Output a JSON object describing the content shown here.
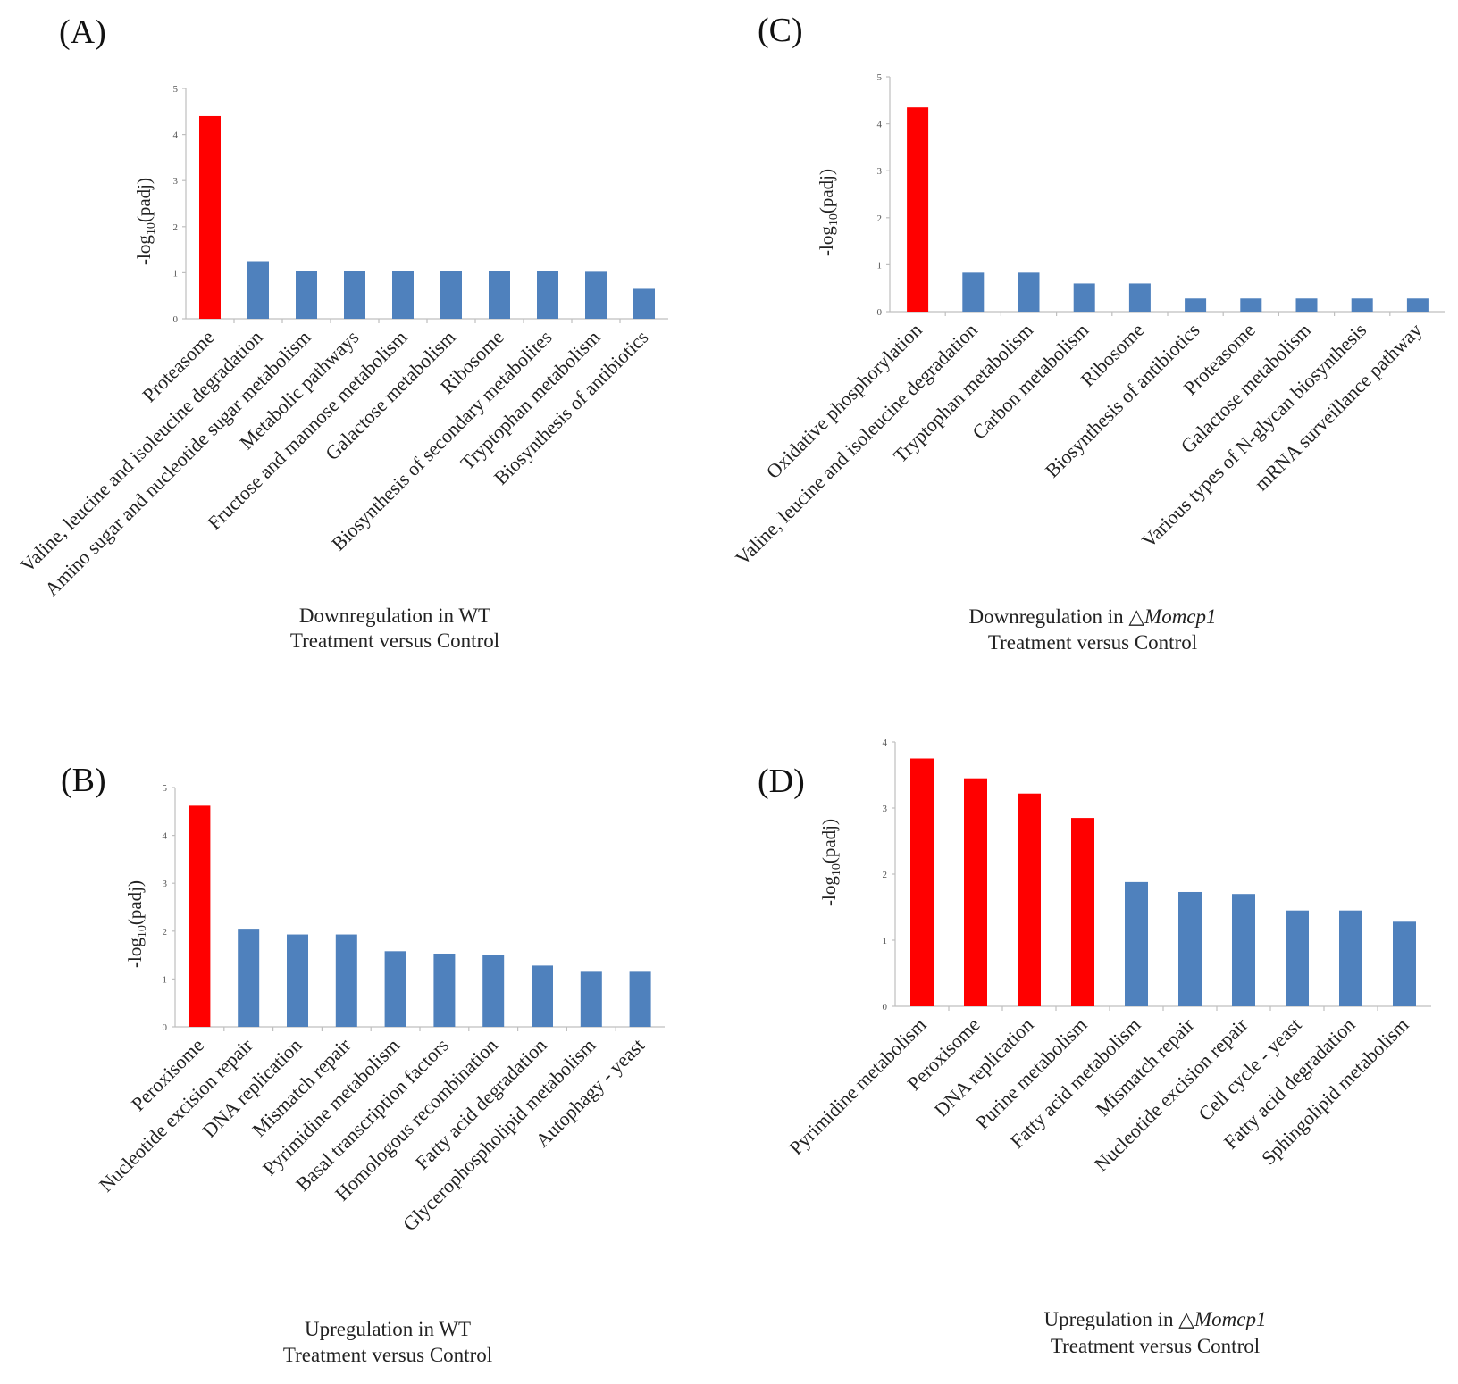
{
  "chart_data": [
    {
      "type": "bar",
      "panel": "(A)",
      "categories": [
        "Proteasome",
        "Valine, leucine and isoleucine degradation",
        "Amino sugar and nucleotide sugar metabolism",
        "Metabolic pathways",
        "Fructose and mannose metabolism",
        "Galactose metabolism",
        "Ribosome",
        "Biosynthesis of secondary metabolites",
        "Tryptophan metabolism",
        "Biosynthesis of antibiotics"
      ],
      "values": [
        4.4,
        1.25,
        1.03,
        1.03,
        1.03,
        1.03,
        1.03,
        1.03,
        1.02,
        0.65
      ],
      "highlight": [
        true,
        false,
        false,
        false,
        false,
        false,
        false,
        false,
        false,
        false
      ],
      "ylim": [
        0,
        5
      ],
      "yticks": [
        "0",
        "1",
        "2",
        "3",
        "4",
        "5"
      ],
      "ylabel": {
        "pre": "-log",
        "sub": "10",
        "post": "(padj)"
      },
      "title_lines": [
        {
          "text": "Downregulation in WT",
          "italic": ""
        },
        {
          "text": "Treatment versus Control",
          "italic": ""
        }
      ]
    },
    {
      "type": "bar",
      "panel": "(B)",
      "categories": [
        "Peroxisome",
        "Nucleotide excision repair",
        "DNA replication",
        "Mismatch repair",
        "Pyrimidine metabolism",
        "Basal transcription factors",
        "Homologous recombination",
        "Fatty acid degradation",
        "Glycerophospholipid metabolism",
        "Autophagy - yeast"
      ],
      "values": [
        4.62,
        2.05,
        1.93,
        1.93,
        1.58,
        1.53,
        1.5,
        1.28,
        1.15,
        1.15
      ],
      "highlight": [
        true,
        false,
        false,
        false,
        false,
        false,
        false,
        false,
        false,
        false
      ],
      "ylim": [
        0,
        5
      ],
      "yticks": [
        "0",
        "1",
        "2",
        "3",
        "4",
        "5"
      ],
      "ylabel": {
        "pre": "-log",
        "sub": "10",
        "post": "(padj)"
      },
      "title_lines": [
        {
          "text": "Upregulation in WT",
          "italic": ""
        },
        {
          "text": "Treatment versus Control",
          "italic": ""
        }
      ]
    },
    {
      "type": "bar",
      "panel": "(C)",
      "categories": [
        "Oxidative phosphorylation",
        "Valine, leucine and isoleucine degradation",
        "Tryptophan metabolism",
        "Carbon metabolism",
        "Ribosome",
        "Biosynthesis of antibiotics",
        "Proteasome",
        "Galactose metabolism",
        "Various types of N-glycan biosynthesis",
        "mRNA surveillance pathway"
      ],
      "values": [
        4.35,
        0.83,
        0.83,
        0.6,
        0.6,
        0.28,
        0.28,
        0.28,
        0.28,
        0.28
      ],
      "highlight": [
        true,
        false,
        false,
        false,
        false,
        false,
        false,
        false,
        false,
        false
      ],
      "ylim": [
        0,
        5
      ],
      "yticks": [
        "0",
        "1",
        "2",
        "3",
        "4",
        "5"
      ],
      "ylabel": {
        "pre": "-log",
        "sub": "10",
        "post": "(padj)"
      },
      "title_lines": [
        {
          "text": "Downregulation in △",
          "italic": "Momcp1"
        },
        {
          "text": "Treatment versus Control",
          "italic": ""
        }
      ]
    },
    {
      "type": "bar",
      "panel": "(D)",
      "categories": [
        "Pyrimidine metabolism",
        "Peroxisome",
        "DNA replication",
        "Purine metabolism",
        "Fatty acid metabolism",
        "Mismatch repair",
        "Nucleotide excision repair",
        "Cell cycle - yeast",
        "Fatty acid degradation",
        "Sphingolipid metabolism"
      ],
      "values": [
        3.75,
        3.45,
        3.22,
        2.85,
        1.88,
        1.73,
        1.7,
        1.45,
        1.45,
        1.28
      ],
      "highlight": [
        true,
        true,
        true,
        true,
        false,
        false,
        false,
        false,
        false,
        false
      ],
      "ylim": [
        0,
        4
      ],
      "yticks": [
        "0",
        "1",
        "2",
        "3",
        "4"
      ],
      "ylabel": {
        "pre": "-log",
        "sub": "10",
        "post": "(padj)"
      },
      "title_lines": [
        {
          "text": "Upregulation in △",
          "italic": "Momcp1"
        },
        {
          "text": "Treatment versus Control",
          "italic": ""
        }
      ]
    }
  ],
  "colors": {
    "highlight": "#ff0000",
    "bar": "#4f81bd",
    "axis": "#bfbfbf"
  }
}
